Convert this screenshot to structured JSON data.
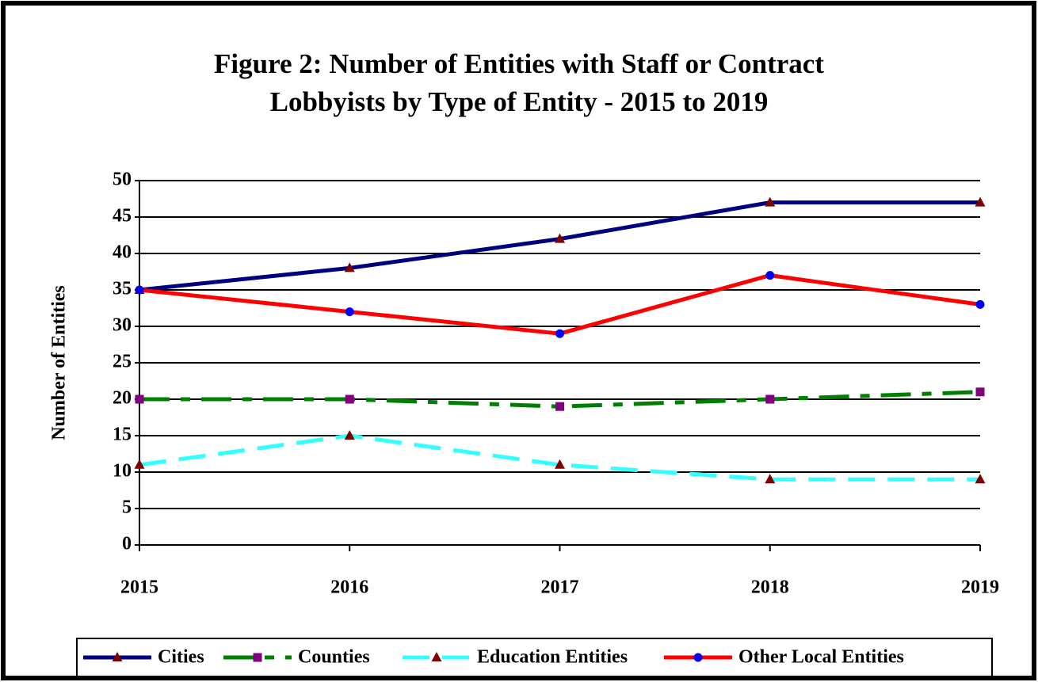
{
  "chart_data": {
    "type": "line",
    "title": [
      "Figure 2:  Number of Entities with Staff or Contract",
      "Lobbyists by Type of Entity - 2015 to 2019"
    ],
    "y_label": "Number of Entities",
    "categories": [
      "2015",
      "2016",
      "2017",
      "2018",
      "2019"
    ],
    "ylim": [
      0,
      50
    ],
    "yticks": [
      0,
      5,
      10,
      15,
      20,
      25,
      30,
      35,
      40,
      45,
      50
    ],
    "grid": true,
    "legend": "bottom",
    "series": [
      {
        "name": "Cities",
        "color": "#000080",
        "dash": "solid",
        "marker": "triangle",
        "marker_color": "#800000",
        "values": [
          35,
          38,
          42,
          47,
          47
        ]
      },
      {
        "name": "Counties",
        "color": "#008000",
        "dash": "dash-dot",
        "marker": "square",
        "marker_color": "#800080",
        "values": [
          20,
          20,
          19,
          20,
          21
        ]
      },
      {
        "name": "Education Entities",
        "color": "#33ffff",
        "dash": "dash",
        "marker": "triangle",
        "marker_color": "#800000",
        "values": [
          11,
          15,
          11,
          9,
          9
        ]
      },
      {
        "name": "Other Local Entities",
        "color": "#ff0000",
        "dash": "solid",
        "marker": "circle",
        "marker_color": "#0000ff",
        "values": [
          35,
          32,
          29,
          37,
          33
        ]
      }
    ]
  }
}
